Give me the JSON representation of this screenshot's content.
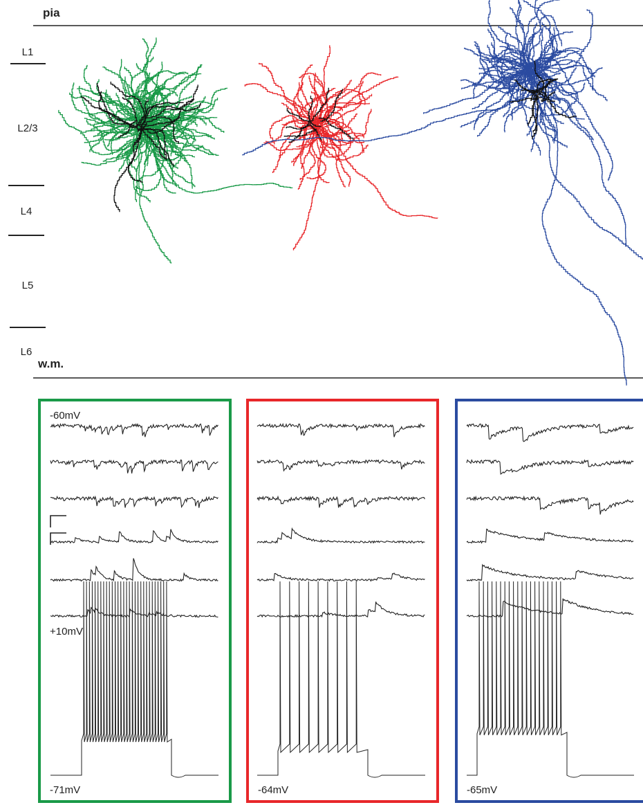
{
  "header": {
    "pia": "pia",
    "wm": "w.m."
  },
  "layers": [
    "L1",
    "L2/3",
    "L4",
    "L5",
    "L6"
  ],
  "panels": [
    {
      "top_label": "-60mV",
      "mid_label": "+10mV",
      "bottom_label": "-71mV"
    },
    {
      "bottom_label": "-64mV"
    },
    {
      "bottom_label": "-65mV"
    }
  ]
}
